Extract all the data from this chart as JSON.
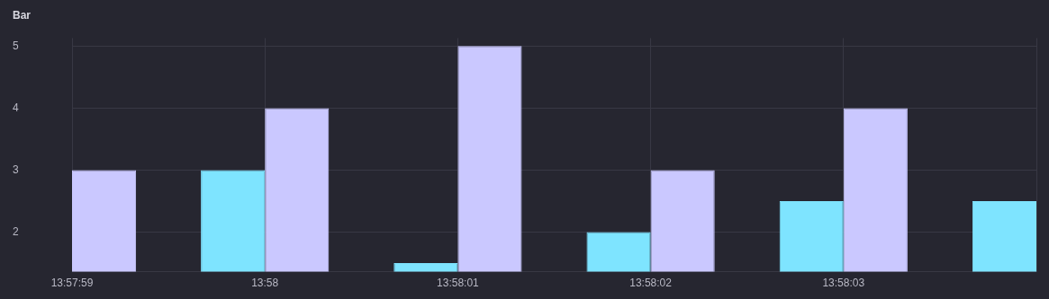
{
  "chart_data": {
    "type": "bar",
    "title": "Bar",
    "categories": [
      "13:57:59",
      "13:58",
      "13:58:01",
      "13:58:02",
      "13:58:03",
      null
    ],
    "series": [
      {
        "color": "#7ee4ff",
        "values": [
          null,
          3,
          1.5,
          2,
          2.5,
          2.5
        ]
      },
      {
        "color": "#cac8ff",
        "values": [
          3,
          4,
          5,
          3,
          4,
          null
        ]
      }
    ],
    "ylim": [
      1.36,
      5.13
    ],
    "yticks": [
      2,
      3,
      4,
      5
    ],
    "grid": true,
    "legend": false
  }
}
